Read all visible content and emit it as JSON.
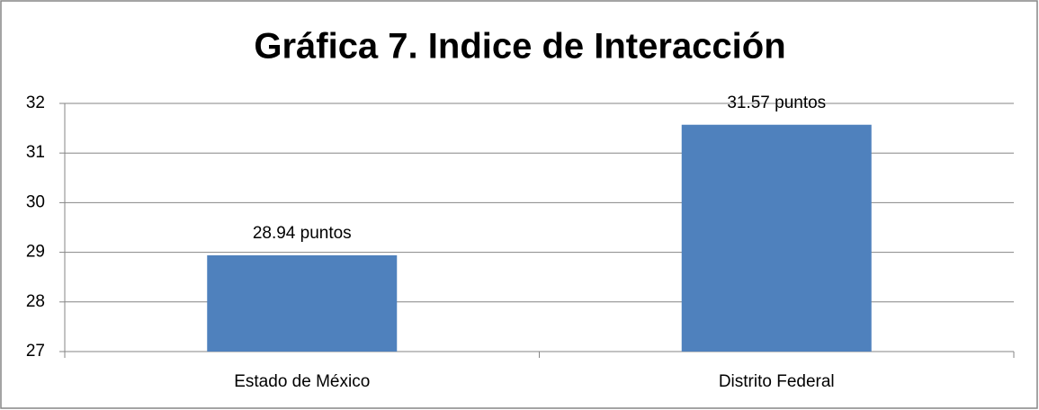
{
  "chart_data": {
    "type": "bar",
    "title": "Gráfica 7. Indice de Interacción",
    "categories": [
      "Estado de México",
      "Distrito Federal"
    ],
    "values": [
      28.94,
      31.57
    ],
    "value_labels": [
      "28.94 puntos",
      "31.57 puntos"
    ],
    "color": "#4f81bd",
    "ylim": [
      27,
      32
    ],
    "yticks": [
      27,
      28,
      29,
      30,
      31,
      32
    ],
    "grid": true
  }
}
